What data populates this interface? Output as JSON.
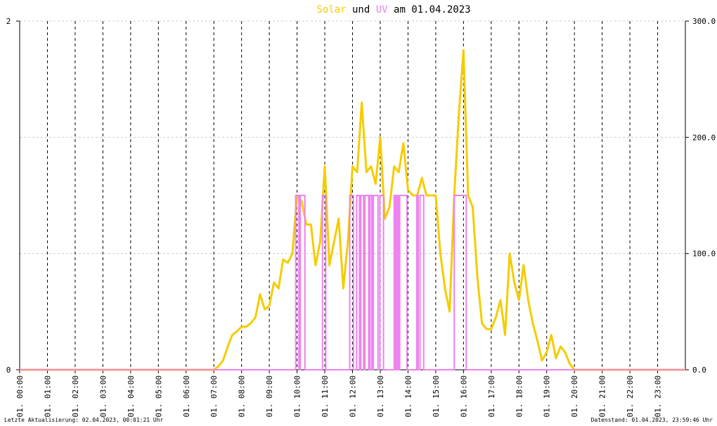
{
  "chart_data": {
    "type": "line",
    "title_connector": "und",
    "title_date": "am 01.04.2023",
    "xlim": [
      0,
      1440
    ],
    "xticks": [
      {
        "value": 0,
        "label": "01. 00:00"
      },
      {
        "value": 60,
        "label": "01. 01:00"
      },
      {
        "value": 120,
        "label": "01. 02:00"
      },
      {
        "value": 180,
        "label": "01. 03:00"
      },
      {
        "value": 240,
        "label": "01. 04:00"
      },
      {
        "value": 300,
        "label": "01. 05:00"
      },
      {
        "value": 360,
        "label": "01. 06:00"
      },
      {
        "value": 420,
        "label": "01. 07:00"
      },
      {
        "value": 480,
        "label": "01. 08:00"
      },
      {
        "value": 540,
        "label": "01. 09:00"
      },
      {
        "value": 600,
        "label": "01. 10:00"
      },
      {
        "value": 660,
        "label": "01. 11:00"
      },
      {
        "value": 720,
        "label": "01. 12:00"
      },
      {
        "value": 780,
        "label": "01. 13:00"
      },
      {
        "value": 840,
        "label": "01. 14:00"
      },
      {
        "value": 900,
        "label": "01. 15:00"
      },
      {
        "value": 960,
        "label": "01. 16:00"
      },
      {
        "value": 1020,
        "label": "01. 17:00"
      },
      {
        "value": 1080,
        "label": "01. 18:00"
      },
      {
        "value": 1140,
        "label": "01. 19:00"
      },
      {
        "value": 1200,
        "label": "01. 20:00"
      },
      {
        "value": 1260,
        "label": "01. 21:00"
      },
      {
        "value": 1320,
        "label": "01. 22:00"
      },
      {
        "value": 1380,
        "label": "01. 23:00"
      }
    ],
    "ylim": [
      0,
      2
    ],
    "yticks": [
      0,
      2
    ],
    "y2lim": [
      0,
      300
    ],
    "y2ticks": [
      {
        "value": 0,
        "label": "0.0"
      },
      {
        "value": 100,
        "label": "100.0"
      },
      {
        "value": 200,
        "label": "200.0"
      },
      {
        "value": 300,
        "label": "300.0"
      }
    ],
    "series": [
      {
        "name": "Solar",
        "color": "#f5cc00",
        "axis": "y2",
        "x": [
          0,
          420,
          430,
          440,
          450,
          460,
          470,
          480,
          490,
          500,
          510,
          520,
          530,
          540,
          550,
          560,
          570,
          580,
          590,
          600,
          610,
          620,
          630,
          640,
          650,
          660,
          670,
          680,
          690,
          700,
          710,
          720,
          730,
          740,
          750,
          760,
          770,
          780,
          790,
          800,
          810,
          820,
          830,
          840,
          850,
          860,
          870,
          880,
          890,
          900,
          910,
          920,
          930,
          940,
          950,
          960,
          970,
          980,
          990,
          1000,
          1010,
          1020,
          1030,
          1040,
          1050,
          1060,
          1070,
          1080,
          1090,
          1100,
          1110,
          1120,
          1130,
          1140,
          1150,
          1160,
          1170,
          1180,
          1190,
          1200,
          1440
        ],
        "values": [
          0,
          0,
          3,
          8,
          20,
          30,
          33,
          37,
          37,
          40,
          45,
          65,
          52,
          55,
          75,
          70,
          95,
          92,
          100,
          150,
          145,
          125,
          125,
          90,
          110,
          175,
          90,
          110,
          130,
          70,
          110,
          175,
          170,
          230,
          170,
          175,
          160,
          200,
          130,
          140,
          175,
          170,
          195,
          155,
          150,
          150,
          165,
          150,
          150,
          150,
          100,
          70,
          50,
          150,
          220,
          275,
          150,
          140,
          80,
          40,
          35,
          35,
          45,
          60,
          30,
          100,
          75,
          60,
          90,
          60,
          40,
          25,
          8,
          15,
          30,
          10,
          20,
          15,
          5,
          0,
          0
        ]
      },
      {
        "name": "UV",
        "color": "#ee82ee",
        "x": [
          0,
          597,
          604,
          607,
          617,
          655,
          662,
          714,
          722,
          729,
          735,
          738,
          744,
          747,
          755,
          758,
          762,
          765,
          775,
          779,
          787,
          810,
          813,
          816,
          819,
          822,
          838,
          859,
          862,
          866,
          874,
          940,
          966,
          1440
        ],
        "values": [
          0,
          1,
          0,
          1,
          0,
          1,
          0,
          1,
          0,
          1,
          0,
          1,
          0,
          1,
          0,
          1,
          0,
          1,
          0,
          1,
          0,
          1,
          0,
          1,
          0,
          1,
          0,
          1,
          0,
          1,
          0,
          1,
          0,
          0
        ]
      }
    ]
  },
  "footer": {
    "left": "Letzte Aktualisierung: 02.04.2023, 00:01:21 Uhr",
    "right": "Datenstand: 01.04.2023, 23:59:46 Uhr"
  }
}
